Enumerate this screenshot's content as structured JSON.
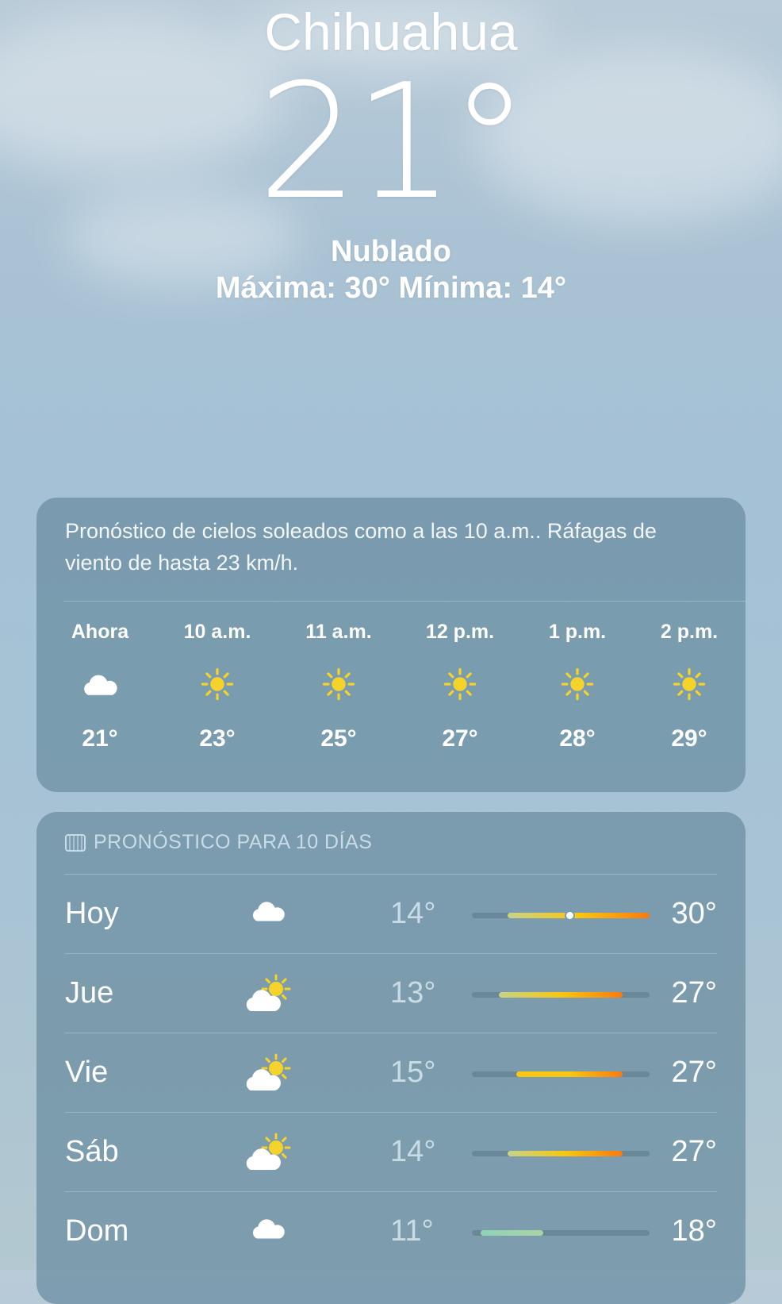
{
  "header": {
    "city": "Chihuahua",
    "temperature": "21°",
    "condition": "Nublado",
    "high_low": "Máxima: 30°  Mínima: 14°"
  },
  "hourly": {
    "summary": "Pronóstico de cielos soleados como a las 10 a.m.. Ráfagas de viento de hasta 23 km/h.",
    "items": [
      {
        "time": "Ahora",
        "icon": "cloud-icon",
        "temp": "21°"
      },
      {
        "time": "10 a.m.",
        "icon": "sun-icon",
        "temp": "23°"
      },
      {
        "time": "11 a.m.",
        "icon": "sun-icon",
        "temp": "25°"
      },
      {
        "time": "12 p.m.",
        "icon": "sun-icon",
        "temp": "27°"
      },
      {
        "time": "1 p.m.",
        "icon": "sun-icon",
        "temp": "28°"
      },
      {
        "time": "2 p.m.",
        "icon": "sun-icon",
        "temp": "29°"
      }
    ]
  },
  "daily": {
    "title": "PRONÓSTICO PARA 10 DÍAS",
    "range": [
      10,
      30
    ],
    "current_temp": 21,
    "days": [
      {
        "day": "Hoy",
        "icon": "cloud-icon",
        "low": "14°",
        "high": "30°",
        "lo": 14,
        "hi": 30
      },
      {
        "day": "Jue",
        "icon": "partly-sunny-icon",
        "low": "13°",
        "high": "27°",
        "lo": 13,
        "hi": 27
      },
      {
        "day": "Vie",
        "icon": "partly-sunny-icon",
        "low": "15°",
        "high": "27°",
        "lo": 15,
        "hi": 27
      },
      {
        "day": "Sáb",
        "icon": "partly-sunny-icon",
        "low": "14°",
        "high": "27°",
        "lo": 14,
        "hi": 27
      },
      {
        "day": "Dom",
        "icon": "cloud-icon",
        "low": "11°",
        "high": "18°",
        "lo": 11,
        "hi": 18
      }
    ]
  },
  "colors": {
    "sun": "#f5d32a",
    "bar_cool": "#8fd3b8",
    "bar_warm": "#f9c70f",
    "bar_hot": "#fb7a0e"
  }
}
